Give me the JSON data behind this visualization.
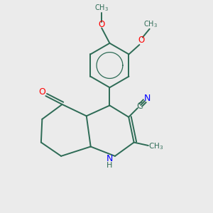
{
  "bg_color": "#ebebeb",
  "bond_color": "#2d6b55",
  "bond_width": 1.4,
  "fig_size": [
    3.0,
    3.0
  ],
  "dpi": 100,
  "xlim": [
    0,
    10
  ],
  "ylim": [
    0,
    10
  ]
}
